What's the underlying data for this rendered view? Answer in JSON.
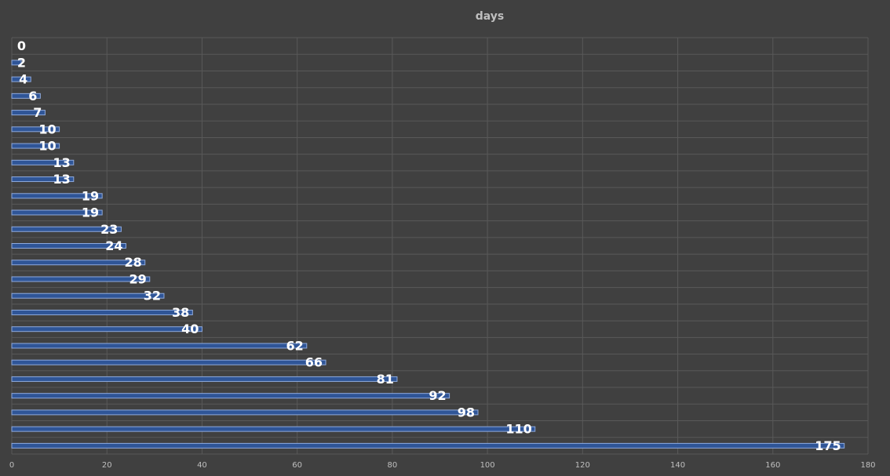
{
  "chart_data": {
    "type": "bar",
    "orientation": "horizontal",
    "title": "days",
    "categories": [
      null,
      null,
      null,
      null,
      null,
      null,
      null,
      null,
      null,
      null,
      null,
      null,
      null,
      null,
      null,
      null,
      null,
      null,
      null,
      null,
      null,
      null,
      null,
      null,
      null
    ],
    "values": [
      0,
      2,
      4,
      6,
      7,
      10,
      10,
      13,
      13,
      19,
      19,
      23,
      24,
      28,
      29,
      32,
      38,
      40,
      62,
      66,
      81,
      92,
      98,
      110,
      175
    ],
    "color": "#2f5597",
    "xlim": [
      0,
      180
    ],
    "xticks": [
      0,
      20,
      40,
      60,
      80,
      100,
      120,
      140,
      160,
      180
    ],
    "grid": true
  }
}
